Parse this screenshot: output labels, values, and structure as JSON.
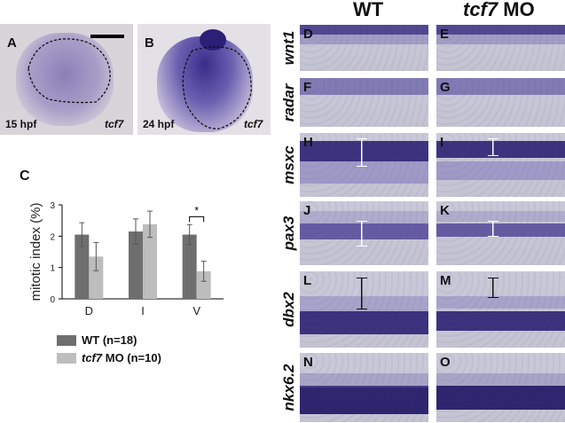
{
  "panel_labels": [
    "A",
    "B",
    "C",
    "D",
    "E",
    "F",
    "G",
    "H",
    "I",
    "J",
    "K",
    "L",
    "M",
    "N",
    "O"
  ],
  "column_headers": {
    "wt": "WT",
    "mo_gene": "tcf7",
    "mo_suffix": " MO"
  },
  "row_genes": [
    "wnt1",
    "radar",
    "msxc",
    "pax3",
    "dbx2",
    "nkx6.2"
  ],
  "panel_a": {
    "stage": "15 hpf",
    "gene": "tcf7"
  },
  "panel_b": {
    "stage": "24 hpf",
    "gene": "tcf7"
  },
  "legend": [
    {
      "gene": "",
      "label": "WT (n=18)",
      "color": "#6e6e6e"
    },
    {
      "gene": "tcf7",
      "label": " MO (n=10)",
      "color": "#bdbdbd"
    }
  ],
  "significance_mark": "*",
  "chart_data": {
    "type": "bar",
    "ylabel": "mitotic index (%)",
    "categories": [
      "D",
      "I",
      "V"
    ],
    "ylim": [
      0,
      3
    ],
    "yticks": [
      0,
      1,
      2,
      3
    ],
    "series": [
      {
        "name": "WT (n=18)",
        "color": "#6e6e6e",
        "values": [
          2.05,
          2.15,
          2.05
        ],
        "errors": [
          0.38,
          0.4,
          0.32
        ]
      },
      {
        "name": "tcf7 MO (n=10)",
        "color": "#bdbdbd",
        "values": [
          1.35,
          2.38,
          0.88
        ],
        "errors": [
          0.45,
          0.42,
          0.32
        ]
      }
    ]
  }
}
